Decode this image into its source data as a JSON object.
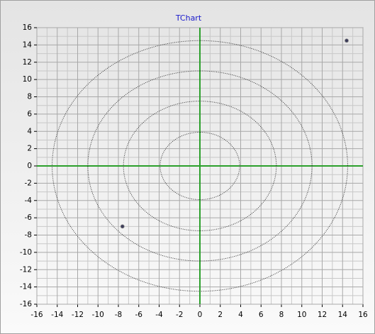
{
  "chart_data": {
    "type": "scatter",
    "title": "TChart",
    "series": [
      {
        "color": "#3c3c5a",
        "x": [
          -7.6,
          14.4
        ],
        "values": [
          -7,
          14.5
        ]
      }
    ],
    "circles": [
      3.9,
      7.5,
      11,
      14.5
    ],
    "xlim": [
      -16,
      16
    ],
    "ylim": [
      -16,
      16
    ],
    "xticks": [
      -16,
      -14,
      -12,
      -10,
      -8,
      -6,
      -4,
      -2,
      0,
      2,
      4,
      6,
      8,
      10,
      12,
      14,
      16
    ],
    "yticks": [
      -16,
      -14,
      -12,
      -10,
      -8,
      -6,
      -4,
      -2,
      0,
      2,
      4,
      6,
      8,
      10,
      12,
      14,
      16
    ],
    "grid": true,
    "axis_color": "#2ca02c"
  }
}
